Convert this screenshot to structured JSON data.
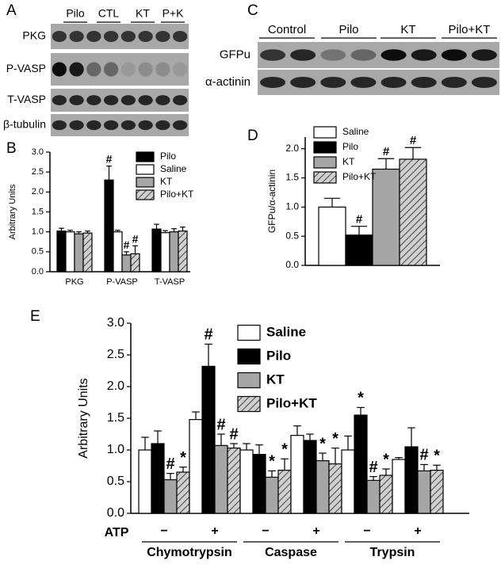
{
  "panel_labels": [
    "A",
    "B",
    "C",
    "D",
    "E"
  ],
  "blots": {
    "A": {
      "columns": [
        "Pilo",
        "CTL",
        "KT",
        "P+K"
      ],
      "rows": [
        "PKG",
        "P-VASP",
        "T-VASP",
        "β-tubulin"
      ]
    },
    "C": {
      "columns": [
        "Control",
        "Pilo",
        "KT",
        "Pilo+KT"
      ],
      "rows": [
        "GFPu",
        "α-actinin"
      ]
    }
  },
  "chart_data": [
    {
      "type": "bar",
      "ylabel": "Arbitrary Units",
      "categories": [
        "PKG",
        "P-VASP",
        "T-VASP"
      ],
      "series": [
        {
          "name": "Pilo",
          "color": "#000000",
          "values": [
            1.02,
            2.3,
            1.07
          ],
          "errors": [
            0.07,
            0.35,
            0.12
          ],
          "markers": [
            null,
            "#",
            null
          ]
        },
        {
          "name": "Saline",
          "color": "#ffffff",
          "values": [
            1.0,
            1.0,
            0.98
          ],
          "errors": [
            0.04,
            0.04,
            0.05
          ],
          "markers": [
            null,
            null,
            null
          ]
        },
        {
          "name": "KT",
          "color": "#a6a6a6",
          "values": [
            0.95,
            0.42,
            1.0
          ],
          "errors": [
            0.05,
            0.08,
            0.08
          ],
          "markers": [
            null,
            "#",
            null
          ]
        },
        {
          "name": "Pilo+KT",
          "color": "#c8c8c8",
          "hatch": true,
          "values": [
            0.97,
            0.45,
            1.02
          ],
          "errors": [
            0.05,
            0.2,
            0.1
          ],
          "markers": [
            null,
            "#",
            null
          ]
        }
      ],
      "ylim": [
        0,
        3
      ],
      "yticks": [
        {
          "value": 0,
          "label": "0.0"
        },
        0.5,
        {
          "value": 1,
          "label": "1.0"
        },
        1.5,
        {
          "value": 2,
          "label": "2.0"
        },
        2.5,
        {
          "value": 3,
          "label": "3.0"
        }
      ]
    },
    {
      "type": "bar",
      "ylabel": "GFPu/α-actinin",
      "categories": [
        null
      ],
      "series": [
        {
          "name": "Saline",
          "color": "#ffffff",
          "values": [
            1.0
          ],
          "errors": [
            0.15
          ],
          "markers": [
            null
          ]
        },
        {
          "name": "Pilo",
          "color": "#000000",
          "values": [
            0.52
          ],
          "errors": [
            0.15
          ],
          "markers": [
            "#"
          ]
        },
        {
          "name": "KT",
          "color": "#a6a6a6",
          "values": [
            1.65
          ],
          "errors": [
            0.18
          ],
          "markers": [
            "#"
          ]
        },
        {
          "name": "Pilo+KT",
          "color": "#c8c8c8",
          "hatch": true,
          "values": [
            1.82
          ],
          "errors": [
            0.2
          ],
          "markers": [
            "#"
          ]
        }
      ],
      "ylim": [
        0,
        2.2
      ],
      "yticks": [
        {
          "value": 0,
          "label": "0.0"
        },
        0.5,
        {
          "value": 1,
          "label": "1.0"
        },
        1.5,
        {
          "value": 2,
          "label": "2.0"
        }
      ]
    },
    {
      "type": "bar",
      "ylabel": "Arbitrary Units",
      "xlabel": "ATP",
      "categories": [
        "−",
        "+",
        "−",
        "+",
        "−",
        "+"
      ],
      "group_labels": [
        "Chymotrypsin",
        "Caspase",
        "Trypsin"
      ],
      "series": [
        {
          "name": "Saline",
          "color": "#ffffff",
          "values": [
            1.0,
            1.48,
            1.0,
            1.23,
            1.0,
            0.85
          ],
          "errors": [
            0.2,
            0.12,
            0.1,
            0.15,
            0.22,
            0.03
          ],
          "markers": [
            null,
            null,
            null,
            null,
            null,
            null
          ]
        },
        {
          "name": "Pilo",
          "color": "#000000",
          "values": [
            1.1,
            2.32,
            0.93,
            1.15,
            1.55,
            1.05
          ],
          "errors": [
            0.2,
            0.35,
            0.15,
            0.1,
            0.12,
            0.3
          ],
          "markers": [
            null,
            "#",
            null,
            null,
            "*",
            null
          ]
        },
        {
          "name": "KT",
          "color": "#a6a6a6",
          "values": [
            0.53,
            1.07,
            0.57,
            0.83,
            0.52,
            0.67
          ],
          "errors": [
            0.1,
            0.18,
            0.1,
            0.12,
            0.06,
            0.1
          ],
          "markers": [
            "#",
            "#",
            "*",
            "*",
            "#",
            "#"
          ]
        },
        {
          "name": "Pilo+KT",
          "color": "#c8c8c8",
          "hatch": true,
          "values": [
            0.65,
            1.03,
            0.68,
            0.78,
            0.6,
            0.68
          ],
          "errors": [
            0.08,
            0.07,
            0.18,
            0.25,
            0.1,
            0.08
          ],
          "markers": [
            "*",
            "#",
            "*",
            "*",
            "*",
            "*"
          ]
        }
      ],
      "ylim": [
        0,
        3
      ],
      "yticks": [
        {
          "value": 0,
          "label": "0.0"
        },
        0.5,
        {
          "value": 1,
          "label": "1.0"
        },
        1.5,
        {
          "value": 2,
          "label": "2.0"
        },
        2.5,
        {
          "value": 3,
          "label": "3.0"
        }
      ]
    }
  ]
}
